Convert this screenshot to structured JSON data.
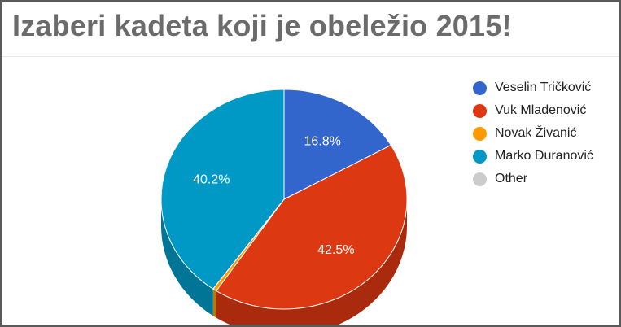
{
  "title": "Izaberi kadeta koji je obeležio 2015!",
  "chart_data": {
    "type": "pie",
    "three_d": true,
    "start_angle_deg": 0,
    "direction": "clockwise",
    "slices": [
      {
        "name": "Veselin Tričković",
        "value": 16.8,
        "label": "16.8%",
        "color": "#3366cc",
        "side_color": "#2a54a8"
      },
      {
        "name": "Vuk Mladenović",
        "value": 42.5,
        "label": "42.5%",
        "color": "#dc3912",
        "side_color": "#a92a0d"
      },
      {
        "name": "Novak Živanić",
        "value": 0.5,
        "label": "",
        "color": "#ff9900",
        "side_color": "#c47600"
      },
      {
        "name": "Marko Đuranović",
        "value": 40.2,
        "label": "40.2%",
        "color": "#0099c6",
        "side_color": "#007596"
      },
      {
        "name": "Other",
        "value": 0,
        "label": "",
        "color": "#cccccc",
        "side_color": "#aaaaaa"
      }
    ],
    "legend": {
      "position": "right"
    }
  }
}
